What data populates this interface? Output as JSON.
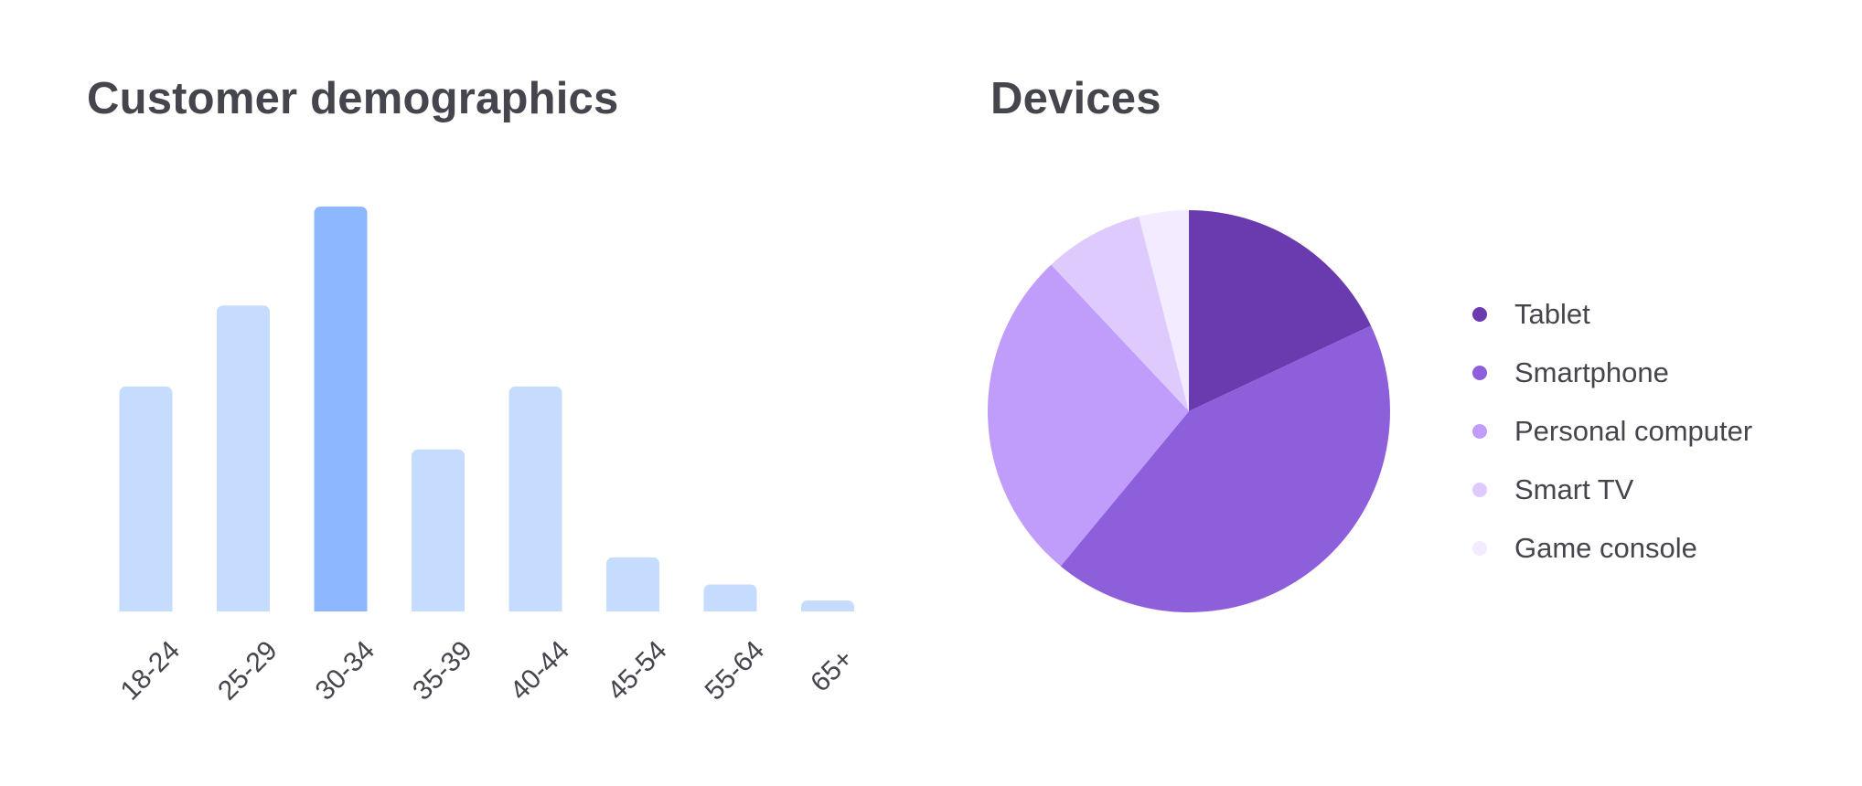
{
  "chart_data": [
    {
      "type": "bar",
      "title": "Customer demographics",
      "categories": [
        "18-24",
        "25-29",
        "30-34",
        "35-39",
        "40-44",
        "45-54",
        "55-64",
        "65+"
      ],
      "values": [
        25,
        34,
        45,
        18,
        25,
        6,
        3,
        1
      ],
      "highlight_index": 2,
      "colors": {
        "bar": "#c5dcff",
        "highlight": "#8db8ff"
      },
      "xlabel": "",
      "ylabel": "",
      "grid": false
    },
    {
      "type": "pie",
      "title": "Devices",
      "labels": [
        "Tablet",
        "Smartphone",
        "Personal computer",
        "Smart TV",
        "Game console"
      ],
      "values": [
        18,
        43,
        27,
        8,
        4
      ],
      "colors": [
        "#6a3aaf",
        "#8e5fdb",
        "#c09cfb",
        "#dfcafd",
        "#f3ebff"
      ],
      "legend": "right"
    }
  ]
}
